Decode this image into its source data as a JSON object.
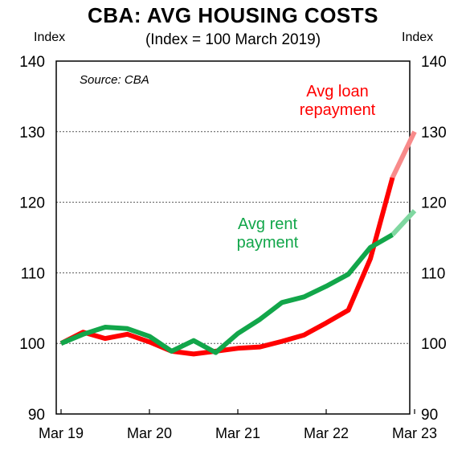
{
  "chart_data": {
    "type": "line",
    "title": "CBA: AVG HOUSING COSTS",
    "subtitle": "(Index = 100 March 2019)",
    "ylabel_left": "Index",
    "ylabel_right": "Index",
    "ylim": [
      90,
      140
    ],
    "yticks": [
      90,
      100,
      110,
      120,
      130,
      140
    ],
    "xlim": [
      0,
      16
    ],
    "xticks": [
      {
        "label": "Mar 19",
        "x": 0
      },
      {
        "label": "Mar 20",
        "x": 4
      },
      {
        "label": "Mar 21",
        "x": 8
      },
      {
        "label": "Mar 22",
        "x": 12
      },
      {
        "label": "Mar 23",
        "x": 16
      }
    ],
    "grid": "horizontal dotted",
    "source_note": "Source: CBA",
    "series": [
      {
        "name": "Avg loan repayment",
        "label_lines": [
          "Avg loan",
          "repayment"
        ],
        "color": "#ff0000",
        "projection_color": "#f88a8a",
        "x": [
          0,
          1,
          2,
          3,
          4,
          5,
          6,
          7,
          8,
          9,
          10,
          11,
          12,
          13,
          14,
          15
        ],
        "values": [
          100,
          101.6,
          100.7,
          101.3,
          100.2,
          98.9,
          98.5,
          98.9,
          99.3,
          99.5,
          100.3,
          101.2,
          102.9,
          104.7,
          112,
          123.5
        ],
        "projection_x": [
          15,
          16
        ],
        "projection_values": [
          123.5,
          130
        ]
      },
      {
        "name": "Avg rent payment",
        "label_lines": [
          "Avg rent",
          "payment"
        ],
        "color": "#12a64a",
        "projection_color": "#7fd7a0",
        "x": [
          0,
          1,
          2,
          3,
          4,
          5,
          6,
          7,
          8,
          9,
          10,
          11,
          12,
          13,
          14,
          15
        ],
        "values": [
          100,
          101.3,
          102.3,
          102.1,
          101,
          98.9,
          100.4,
          98.7,
          101.4,
          103.4,
          105.8,
          106.6,
          108.1,
          109.8,
          113.6,
          115.4
        ],
        "projection_x": [
          15,
          16
        ],
        "projection_values": [
          115.4,
          118.8
        ]
      }
    ]
  }
}
